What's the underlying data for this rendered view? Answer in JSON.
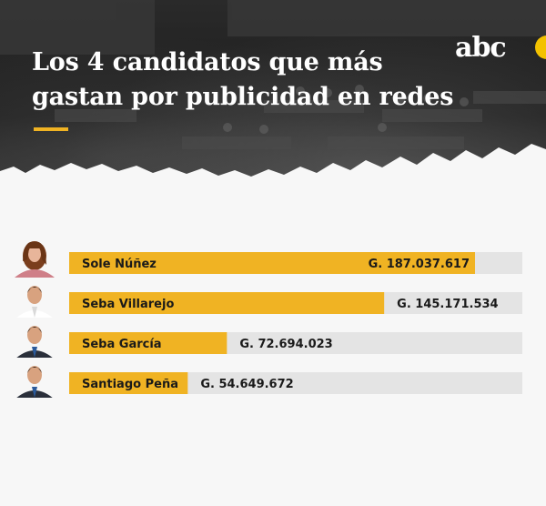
{
  "header": {
    "title_line1": "Los 4 candidatos que más",
    "title_line2": "gastan por publicidad en redes",
    "logo_text": "abc",
    "accent_color": "#f0b323"
  },
  "chart_data": {
    "type": "bar",
    "orientation": "horizontal",
    "categories": [
      "Sole Núñez",
      "Seba Villarejo",
      "Seba García",
      "Santiago Peña"
    ],
    "values": [
      187037617,
      145171534,
      72694023,
      54649672
    ],
    "value_labels": [
      "G. 187.037.617",
      "G. 145.171.534",
      "G. 72.694.023",
      "G. 54.649.672"
    ],
    "bar_color": "#f0b323",
    "track_color": "#e4e4e4",
    "avatars": [
      "woman-portrait-icon",
      "man-portrait-icon",
      "man-portrait-icon",
      "man-portrait-icon"
    ]
  }
}
